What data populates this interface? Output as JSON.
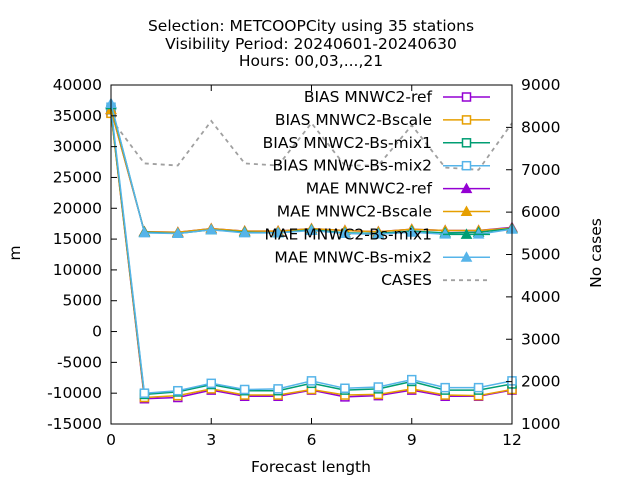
{
  "chart_data": {
    "type": "line",
    "title_lines": [
      "Selection: METCOOPCity using    35 stations",
      "Visibility   Period: 20240601-20240630",
      "Hours: 00,03,...,21"
    ],
    "xlabel": "Forecast length",
    "ylabel": "m",
    "y2label": "No cases",
    "x": [
      0,
      1,
      2,
      3,
      4,
      5,
      6,
      7,
      8,
      9,
      10,
      11,
      12
    ],
    "xlim": [
      0,
      12
    ],
    "ylim": [
      -15000,
      40000
    ],
    "y2lim": [
      1000,
      9000
    ],
    "xticks": [
      "0",
      "3",
      "6",
      "9",
      "12"
    ],
    "yticks": [
      "-15000",
      "-10000",
      "-5000",
      "0",
      "5000",
      "10000",
      "15000",
      "20000",
      "25000",
      "30000",
      "35000",
      "40000"
    ],
    "y2ticks": [
      "1000",
      "2000",
      "3000",
      "4000",
      "5000",
      "6000",
      "7000",
      "8000",
      "9000"
    ],
    "grid": false,
    "legend_position": "top-right",
    "series": [
      {
        "name": "BIAS MNWC2-ref",
        "axis": "y",
        "color": "#9400d3",
        "marker": "square-open",
        "values": [
          35500,
          -10900,
          -10700,
          -9500,
          -10500,
          -10500,
          -9500,
          -10600,
          -10400,
          -9500,
          -10500,
          -10500,
          -9500
        ]
      },
      {
        "name": "BIAS MNWC2-Bscale",
        "axis": "y",
        "color": "#e69f00",
        "marker": "square-open",
        "values": [
          35400,
          -10700,
          -10400,
          -9300,
          -10300,
          -10300,
          -9400,
          -10300,
          -10200,
          -9300,
          -10300,
          -10400,
          -9400
        ]
      },
      {
        "name": "BIAS MNWC2-Bs-mix1",
        "axis": "y",
        "color": "#009e73",
        "marker": "square-open",
        "values": [
          36000,
          -10200,
          -9800,
          -8600,
          -9600,
          -9600,
          -8400,
          -9500,
          -9300,
          -8100,
          -9500,
          -9500,
          -8500
        ]
      },
      {
        "name": "BIAS MNWC-Bs-mix2",
        "axis": "y",
        "color": "#56b4e9",
        "marker": "square-open",
        "values": [
          36400,
          -10000,
          -9600,
          -8400,
          -9400,
          -9300,
          -8000,
          -9200,
          -9000,
          -7800,
          -9100,
          -9100,
          -8000
        ]
      },
      {
        "name": "MAE MNWC2-ref",
        "axis": "y",
        "color": "#9400d3",
        "marker": "triangle-filled",
        "values": [
          36000,
          16200,
          16100,
          16700,
          16300,
          16300,
          16700,
          16400,
          16200,
          16600,
          16400,
          16400,
          16900
        ]
      },
      {
        "name": "MAE MNWC2-Bscale",
        "axis": "y",
        "color": "#e69f00",
        "marker": "triangle-filled",
        "values": [
          36000,
          16200,
          16100,
          16700,
          16300,
          16300,
          16700,
          16400,
          16200,
          16600,
          16400,
          16400,
          16800
        ]
      },
      {
        "name": "MAE MNWC2-Bs-mix1",
        "axis": "y",
        "color": "#009e73",
        "marker": "triangle-filled",
        "values": [
          36800,
          16100,
          15900,
          16500,
          16100,
          16000,
          16500,
          16000,
          15900,
          16300,
          16000,
          16100,
          16700
        ]
      },
      {
        "name": "MAE MNWC-Bs-mix2",
        "axis": "y",
        "color": "#56b4e9",
        "marker": "triangle-filled",
        "values": [
          37000,
          16000,
          15900,
          16500,
          16000,
          16000,
          16400,
          15900,
          15800,
          16100,
          15800,
          15800,
          16600
        ]
      },
      {
        "name": "CASES",
        "axis": "y2",
        "color": "#a0a0a0",
        "marker": "none",
        "dashed": true,
        "values": [
          8200,
          7150,
          7100,
          8150,
          7150,
          7100,
          8100,
          7100,
          7100,
          8050,
          7050,
          7000,
          8100
        ]
      }
    ]
  }
}
